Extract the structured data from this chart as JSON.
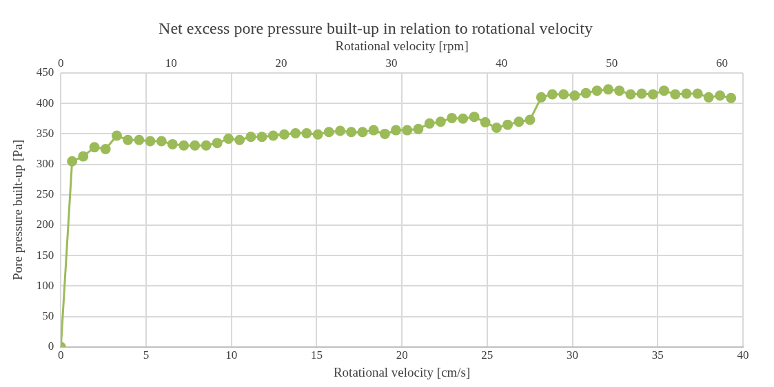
{
  "chart_data": {
    "type": "line",
    "title": "Net excess pore pressure built-up in relation to rotational velocity",
    "xlabel": "Rotational velocity [cm/s]",
    "x2label": "Rotational velocity [rpm]",
    "ylabel": "Pore pressure built-up [Pa]",
    "x": [
      0,
      0.66,
      1.31,
      1.97,
      2.62,
      3.28,
      3.93,
      4.59,
      5.24,
      5.9,
      6.55,
      7.21,
      7.86,
      8.52,
      9.17,
      9.83,
      10.48,
      11.14,
      11.79,
      12.45,
      13.1,
      13.76,
      14.41,
      15.07,
      15.72,
      16.38,
      17.03,
      17.69,
      18.34,
      19,
      19.65,
      20.31,
      20.96,
      21.62,
      22.27,
      22.93,
      23.58,
      24.24,
      24.89,
      25.55,
      26.2,
      26.86,
      27.51,
      28.17,
      28.82,
      29.48,
      30.13,
      30.79,
      31.44,
      32.1,
      32.75,
      33.41,
      34.06,
      34.72,
      35.37,
      36.03,
      36.68,
      37.34,
      37.99,
      38.65,
      39.3
    ],
    "series": [
      {
        "color": "#9bbb59",
        "values": [
          0,
          305,
          313,
          328,
          325,
          347,
          340,
          340,
          338,
          338,
          333,
          331,
          331,
          331,
          335,
          342,
          340,
          345,
          345,
          347,
          349,
          351,
          351,
          349,
          353,
          355,
          353,
          353,
          356,
          350,
          356,
          356,
          358,
          367,
          370,
          376,
          375,
          378,
          369,
          360,
          365,
          370,
          373,
          410,
          415,
          415,
          413,
          417,
          421,
          423,
          421,
          415,
          416,
          415,
          421,
          415,
          416,
          416,
          410,
          413,
          409
        ]
      }
    ],
    "xlim": [
      0,
      40
    ],
    "xticks": [
      0,
      5,
      10,
      15,
      20,
      25,
      30,
      35,
      40
    ],
    "x2lim": [
      0,
      61.9
    ],
    "x2ticks": [
      0,
      10,
      20,
      30,
      40,
      50,
      60
    ],
    "ylim": [
      0,
      450
    ],
    "yticks": [
      0,
      50,
      100,
      150,
      200,
      250,
      300,
      350,
      400,
      450
    ],
    "grid": true,
    "legend": false,
    "marker": "circle",
    "line_style": "solid"
  }
}
